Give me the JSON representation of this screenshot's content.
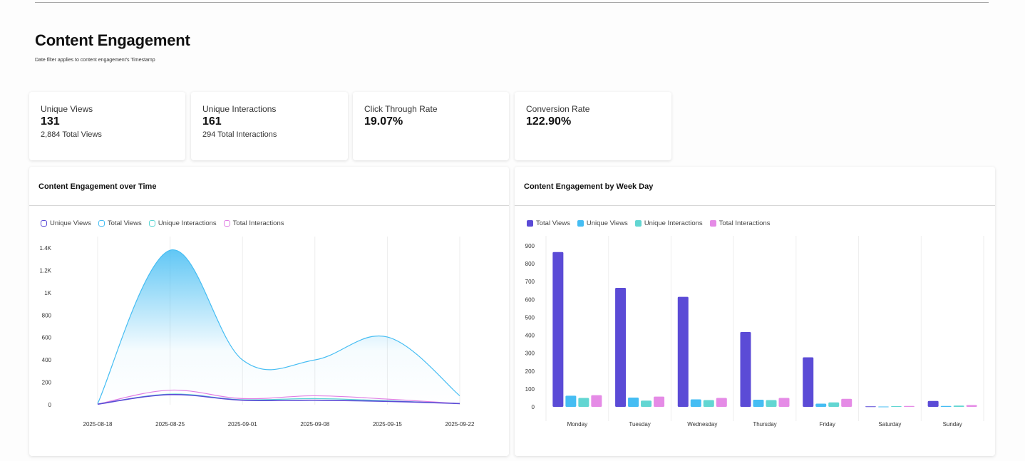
{
  "page": {
    "title": "Content Engagement",
    "subtitle": "Date filter applies to content engagement's Timestamp"
  },
  "stats": [
    {
      "label": "Unique Views",
      "value": "131",
      "sub": "2,884 Total Views"
    },
    {
      "label": "Unique Interactions",
      "value": "161",
      "sub": "294 Total Interactions"
    },
    {
      "label": "Click Through Rate",
      "value": "19.07%",
      "sub": ""
    },
    {
      "label": "Conversion Rate",
      "value": "122.90%",
      "sub": ""
    }
  ],
  "colors": {
    "unique_views_line": "#5b4bd6",
    "total_views_line": "#45bdf3",
    "unique_interactions_line": "#5ad6d4",
    "total_interactions_line": "#e07ee4",
    "bar_total_views": "#5b4bd6",
    "bar_unique_views": "#45bdf3",
    "bar_unique_interactions": "#62d6d2",
    "bar_total_interactions": "#e58be6"
  },
  "time_chart": {
    "title": "Content Engagement over Time",
    "legend": [
      {
        "label": "Unique Views",
        "icon": "outline-square",
        "color": "#5b4bd6"
      },
      {
        "label": "Total Views",
        "icon": "outline-square",
        "color": "#45bdf3"
      },
      {
        "label": "Unique Interactions",
        "icon": "outline-square",
        "color": "#5ad6d4"
      },
      {
        "label": "Total Interactions",
        "icon": "outline-square",
        "color": "#e07ee4"
      }
    ],
    "y_tick_labels": [
      "0",
      "200",
      "400",
      "600",
      "800",
      "1K",
      "1.2K",
      "1.4K"
    ]
  },
  "weekday_chart": {
    "title": "Content Engagement by Week Day",
    "legend": [
      {
        "label": "Total Views",
        "icon": "filled-square",
        "color": "#5b4bd6"
      },
      {
        "label": "Unique Views",
        "icon": "filled-square",
        "color": "#45bdf3"
      },
      {
        "label": "Unique Interactions",
        "icon": "filled-square",
        "color": "#62d6d2"
      },
      {
        "label": "Total Interactions",
        "icon": "filled-square",
        "color": "#e58be6"
      }
    ]
  },
  "chart_data": [
    {
      "type": "area",
      "title": "Content Engagement over Time",
      "x": [
        "2025-08-18",
        "2025-08-25",
        "2025-09-01",
        "2025-09-08",
        "2025-09-15",
        "2025-09-22"
      ],
      "ylim": [
        0,
        1400
      ],
      "y_ticks": [
        0,
        200,
        400,
        600,
        800,
        1000,
        1200,
        1400
      ],
      "grid": "vertical",
      "legend_position": "top-left",
      "series": [
        {
          "name": "Unique Views",
          "color": "#5b4bd6",
          "values": [
            5,
            90,
            40,
            40,
            30,
            10
          ]
        },
        {
          "name": "Total Views",
          "color": "#45bdf3",
          "values": [
            10,
            1380,
            400,
            400,
            605,
            80
          ]
        },
        {
          "name": "Unique Interactions",
          "color": "#5ad6d4",
          "values": [
            5,
            95,
            45,
            55,
            35,
            10
          ]
        },
        {
          "name": "Total Interactions",
          "color": "#e07ee4",
          "values": [
            5,
            130,
            55,
            80,
            50,
            10
          ]
        }
      ]
    },
    {
      "type": "bar",
      "title": "Content Engagement by Week Day",
      "categories": [
        "Monday",
        "Tuesday",
        "Wednesday",
        "Thursday",
        "Friday",
        "Saturday",
        "Sunday"
      ],
      "ylim": [
        0,
        900
      ],
      "y_ticks": [
        0,
        100,
        200,
        300,
        400,
        500,
        600,
        700,
        800,
        900
      ],
      "grid": "vertical",
      "legend_position": "top-left",
      "series": [
        {
          "name": "Total Views",
          "color": "#5b4bd6",
          "values": [
            865,
            665,
            615,
            418,
            277,
            3,
            33
          ]
        },
        {
          "name": "Unique Views",
          "color": "#45bdf3",
          "values": [
            62,
            52,
            42,
            40,
            18,
            2,
            5
          ]
        },
        {
          "name": "Unique Interactions",
          "color": "#62d6d2",
          "values": [
            50,
            35,
            38,
            38,
            25,
            4,
            7
          ]
        },
        {
          "name": "Total Interactions",
          "color": "#e58be6",
          "values": [
            65,
            57,
            50,
            50,
            45,
            5,
            10
          ]
        }
      ]
    }
  ]
}
